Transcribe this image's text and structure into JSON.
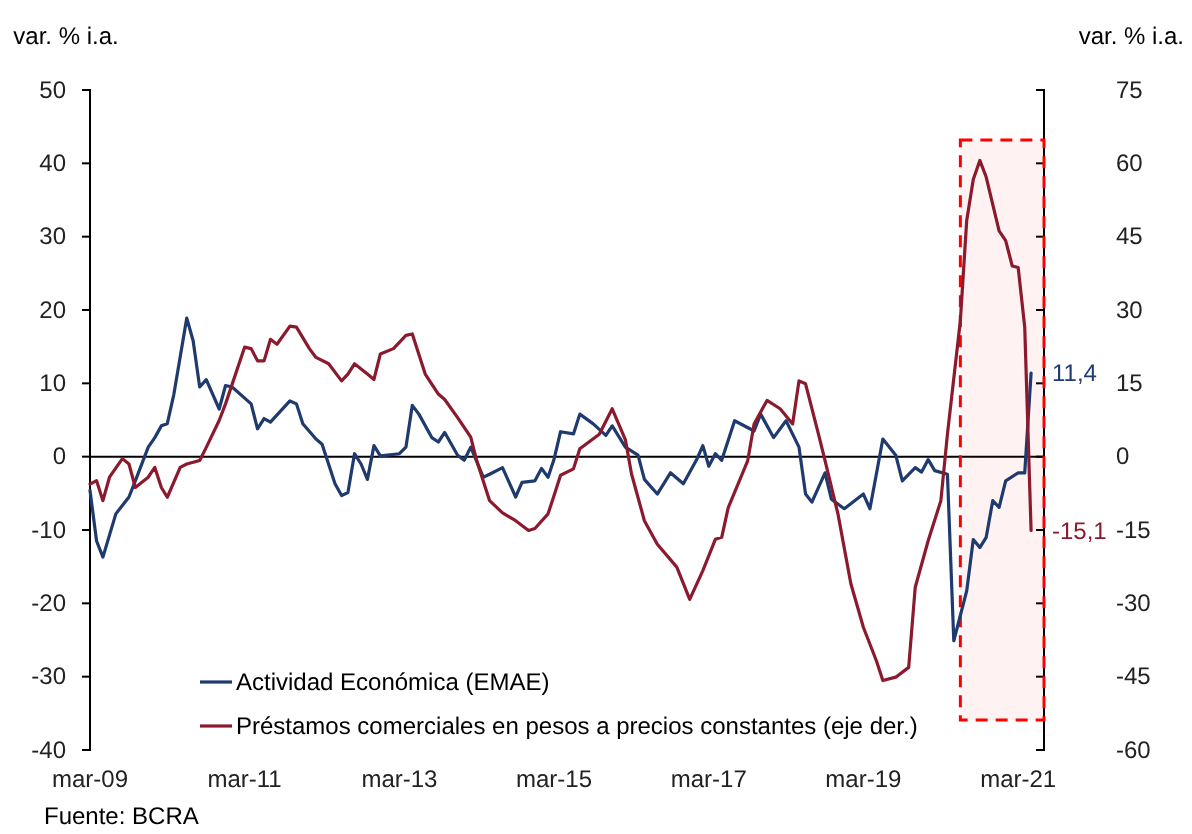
{
  "chart_data": {
    "type": "line",
    "ylabel": "var. % i.a.",
    "y2label": "var. % i.a.",
    "annotations": [
      "Fuente: BCRA"
    ],
    "legend": "bottom left",
    "xlim": [
      "2009-03",
      "2021-07"
    ],
    "xticks": [
      {
        "value": "2009-03",
        "label": "mar-09"
      },
      {
        "value": "2011-03",
        "label": "mar-11"
      },
      {
        "value": "2013-03",
        "label": "mar-13"
      },
      {
        "value": "2015-03",
        "label": "mar-15"
      },
      {
        "value": "2017-03",
        "label": "mar-17"
      },
      {
        "value": "2019-03",
        "label": "mar-19"
      },
      {
        "value": "2021-03",
        "label": "mar-21"
      }
    ],
    "ylim": [
      -40,
      50
    ],
    "yticks": [
      -40,
      -30,
      -20,
      -10,
      0,
      10,
      20,
      30,
      40,
      50
    ],
    "y2lim": [
      -60,
      75
    ],
    "y2ticks": [
      -60,
      -45,
      -30,
      -15,
      0,
      15,
      30,
      45,
      60,
      75
    ],
    "bands": [
      {
        "axis": "x",
        "from": "2020-06",
        "to": "2021-07",
        "color": "#ff0000"
      }
    ],
    "series": [
      {
        "name": "Actividad Económica (EMAE)",
        "color": "#1f3a6e",
        "x": [
          "2009-03",
          "2009-04",
          "2009-05",
          "2009-07",
          "2009-09",
          "2009-10",
          "2009-12",
          "2010-01",
          "2010-02",
          "2010-03",
          "2010-04",
          "2010-06",
          "2010-07",
          "2010-08",
          "2010-09",
          "2010-11",
          "2010-12",
          "2011-01",
          "2011-04",
          "2011-05",
          "2011-06",
          "2011-07",
          "2011-10",
          "2011-11",
          "2011-12",
          "2012-02",
          "2012-03",
          "2012-05",
          "2012-06",
          "2012-07",
          "2012-08",
          "2012-09",
          "2012-10",
          "2012-11",
          "2012-12",
          "2013-03",
          "2013-04",
          "2013-05",
          "2013-06",
          "2013-08",
          "2013-09",
          "2013-10",
          "2013-12",
          "2014-01",
          "2014-02",
          "2014-04",
          "2014-05",
          "2014-07",
          "2014-09",
          "2014-10",
          "2014-12",
          "2015-01",
          "2015-02",
          "2015-03",
          "2015-04",
          "2015-06",
          "2015-07",
          "2015-09",
          "2015-11",
          "2015-12",
          "2016-02",
          "2016-04",
          "2016-05",
          "2016-07",
          "2016-09",
          "2016-11",
          "2017-01",
          "2017-02",
          "2017-03",
          "2017-04",
          "2017-05",
          "2017-07",
          "2017-10",
          "2017-11",
          "2018-01",
          "2018-03",
          "2018-05",
          "2018-06",
          "2018-07",
          "2018-09",
          "2018-10",
          "2018-12",
          "2019-03",
          "2019-04",
          "2019-06",
          "2019-08",
          "2019-09",
          "2019-11",
          "2019-12",
          "2020-01",
          "2020-02",
          "2020-04",
          "2020-05",
          "2020-07",
          "2020-08",
          "2020-09",
          "2020-10",
          "2020-11",
          "2020-12",
          "2021-01",
          "2021-03",
          "2021-04",
          "2021-05"
        ],
        "values": [
          -4.6,
          -11.5,
          -13.7,
          -7.8,
          -5.5,
          -3.3,
          1.3,
          2.6,
          4.2,
          4.5,
          8.5,
          18.9,
          15.8,
          9.5,
          10.5,
          6.5,
          9.7,
          9.5,
          7.2,
          3.8,
          5.2,
          4.7,
          7.6,
          7.2,
          4.5,
          2.4,
          1.7,
          -3.7,
          -5.3,
          -4.9,
          0.4,
          -1,
          -3.1,
          1.5,
          0.1,
          0.4,
          1.3,
          7,
          5.8,
          2.6,
          2,
          3.3,
          0.2,
          -0.5,
          1.3,
          -2.8,
          -2.4,
          -1.5,
          -5.5,
          -3.5,
          -3.3,
          -1.6,
          -2.8,
          -0.4,
          3.4,
          3.1,
          5.8,
          4.5,
          2.9,
          4.2,
          1.3,
          0.2,
          -3.1,
          -5.1,
          -2.2,
          -3.7,
          -0.5,
          1.5,
          -1.3,
          0.4,
          -0.5,
          4.9,
          3.5,
          5.8,
          2.6,
          4.9,
          1.3,
          -5.1,
          -6.2,
          -2.2,
          -5.8,
          -7.1,
          -5.1,
          -7.1,
          2.4,
          0.2,
          -3.3,
          -1.5,
          -2.1,
          -0.4,
          -1.9,
          -2.4,
          -25.1,
          -18.3,
          -11.3,
          -12.4,
          -11,
          -6,
          -6.9,
          -3.3,
          -2.2,
          -2.2,
          11.4
        ],
        "value_labels": [
          null,
          null,
          null,
          null,
          null,
          null,
          null,
          null,
          null,
          null,
          null,
          null,
          null,
          null,
          null,
          null,
          null,
          null,
          null,
          null,
          null,
          null,
          null,
          null,
          null,
          null,
          null,
          null,
          null,
          null,
          null,
          null,
          null,
          null,
          null,
          null,
          null,
          null,
          null,
          null,
          null,
          null,
          null,
          null,
          null,
          null,
          null,
          null,
          null,
          null,
          null,
          null,
          null,
          null,
          null,
          null,
          null,
          null,
          null,
          null,
          null,
          null,
          null,
          null,
          null,
          null,
          null,
          null,
          null,
          null,
          null,
          null,
          null,
          null,
          null,
          null,
          null,
          null,
          null,
          null,
          null,
          null,
          null,
          null,
          null,
          null,
          null,
          null,
          null,
          null,
          null,
          null,
          null,
          null,
          null,
          null,
          null,
          null,
          null,
          null,
          null,
          null,
          "11,4"
        ]
      },
      {
        "name": "Préstamos comerciales en pesos a precios constantes (eje der.)",
        "color": "#8b1a2e",
        "axis": "y2",
        "x": [
          "2009-03",
          "2009-04",
          "2009-05",
          "2009-06",
          "2009-08",
          "2009-09",
          "2009-10",
          "2009-12",
          "2010-01",
          "2010-02",
          "2010-03",
          "2010-05",
          "2010-06",
          "2010-08",
          "2010-09",
          "2010-11",
          "2010-12",
          "2011-03",
          "2011-04",
          "2011-05",
          "2011-06",
          "2011-07",
          "2011-08",
          "2011-10",
          "2011-11",
          "2012-01",
          "2012-02",
          "2012-04",
          "2012-06",
          "2012-07",
          "2012-08",
          "2012-10",
          "2012-11",
          "2012-12",
          "2013-02",
          "2013-04",
          "2013-05",
          "2013-07",
          "2013-09",
          "2013-10",
          "2013-12",
          "2014-02",
          "2014-03",
          "2014-05",
          "2014-07",
          "2014-09",
          "2014-11",
          "2014-12",
          "2015-02",
          "2015-03",
          "2015-04",
          "2015-06",
          "2015-07",
          "2015-10",
          "2015-12",
          "2016-02",
          "2016-03",
          "2016-05",
          "2016-07",
          "2016-10",
          "2016-12",
          "2017-02",
          "2017-04",
          "2017-05",
          "2017-06",
          "2017-09",
          "2017-10",
          "2017-12",
          "2018-02",
          "2018-04",
          "2018-05",
          "2018-06",
          "2018-08",
          "2018-09",
          "2018-11",
          "2019-01",
          "2019-03",
          "2019-05",
          "2019-06",
          "2019-08",
          "2019-10",
          "2019-11",
          "2020-01",
          "2020-03",
          "2020-04",
          "2020-06",
          "2020-07",
          "2020-08",
          "2020-09",
          "2020-10",
          "2020-12",
          "2021-01",
          "2021-02",
          "2021-03",
          "2021-04",
          "2021-05"
        ],
        "values": [
          -5.6,
          -4.9,
          -9,
          -4.2,
          -0.4,
          -1.5,
          -6.3,
          -4.2,
          -2.2,
          -6.3,
          -8.3,
          -2.2,
          -1.5,
          -0.8,
          1.9,
          7.4,
          10.8,
          22.4,
          22.1,
          19.6,
          19.6,
          24,
          23,
          26.7,
          26.5,
          22.1,
          20.3,
          19,
          15.5,
          16.9,
          19,
          16.9,
          15.8,
          21,
          22.1,
          24.8,
          25.1,
          16.9,
          12.8,
          11.7,
          8,
          4,
          -0.8,
          -9,
          -11.5,
          -13.1,
          -15.1,
          -14.7,
          -11.7,
          -8,
          -3.8,
          -2.5,
          1.6,
          4.6,
          9.8,
          3.5,
          -3.5,
          -13.1,
          -17.9,
          -22.6,
          -29.2,
          -23.3,
          -16.9,
          -16.5,
          -10.4,
          -0.8,
          6.7,
          11.5,
          9.8,
          6.7,
          15.5,
          14.9,
          4.6,
          -0.8,
          -11.7,
          -26,
          -34.9,
          -41.7,
          -45.8,
          -45.1,
          -43.1,
          -26.7,
          -17.2,
          -9,
          4.6,
          27.8,
          48.3,
          56.7,
          60.6,
          57.2,
          46.2,
          44.2,
          39,
          38.7,
          26.5,
          -15.1
        ],
        "value_labels": [
          null,
          null,
          null,
          null,
          null,
          null,
          null,
          null,
          null,
          null,
          null,
          null,
          null,
          null,
          null,
          null,
          null,
          null,
          null,
          null,
          null,
          null,
          null,
          null,
          null,
          null,
          null,
          null,
          null,
          null,
          null,
          null,
          null,
          null,
          null,
          null,
          null,
          null,
          null,
          null,
          null,
          null,
          null,
          null,
          null,
          null,
          null,
          null,
          null,
          null,
          null,
          null,
          null,
          null,
          null,
          null,
          null,
          null,
          null,
          null,
          null,
          null,
          null,
          null,
          null,
          null,
          null,
          null,
          null,
          null,
          null,
          null,
          null,
          null,
          null,
          null,
          null,
          null,
          null,
          null,
          null,
          null,
          null,
          null,
          null,
          null,
          null,
          null,
          null,
          null,
          null,
          null,
          null,
          null,
          null,
          "-15,1"
        ]
      }
    ]
  }
}
